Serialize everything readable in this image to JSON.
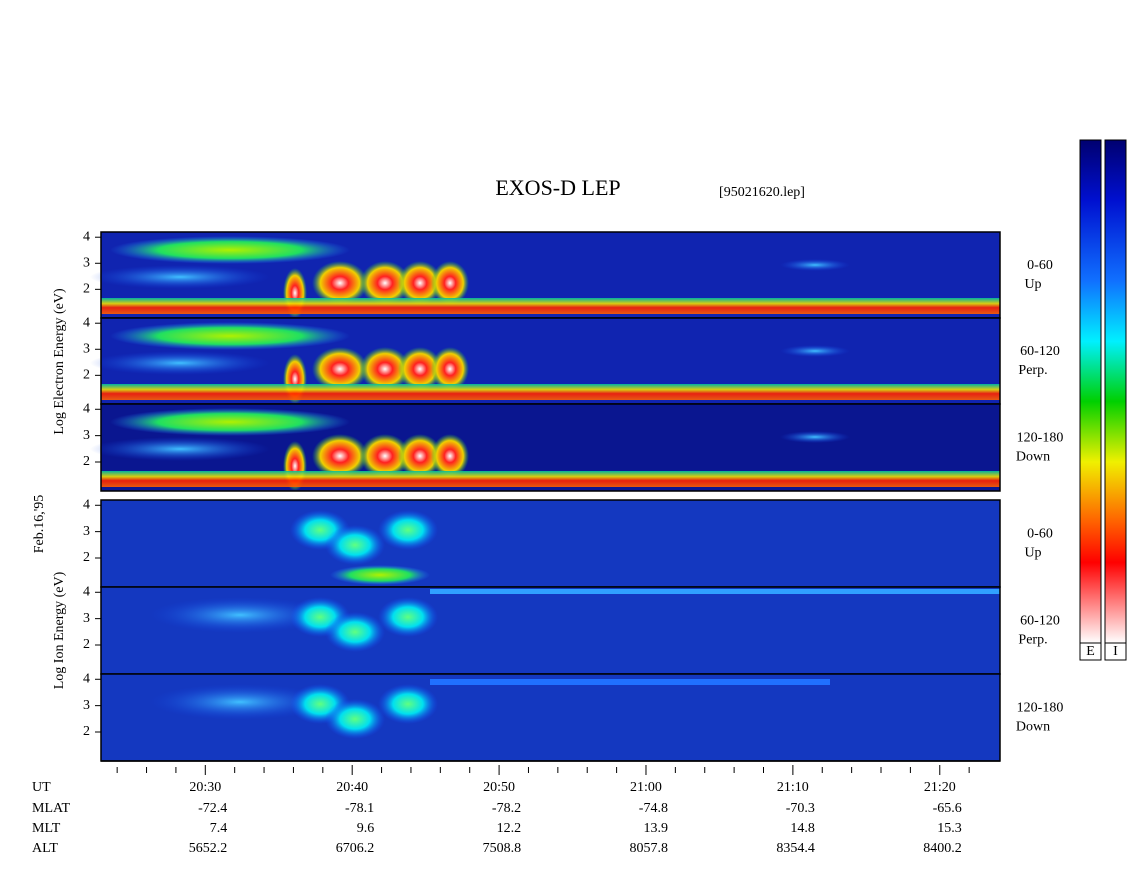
{
  "chart_data": {
    "type": "spectrogram",
    "title": "EXOS-D LEP",
    "subtitle": "[95021620.lep]",
    "date_label": "Feb.16,'95",
    "x_label": "UT",
    "xlim": [
      1222.9,
      1284.1
    ],
    "xticks": [
      {
        "value": 1230,
        "label": "20:30"
      },
      {
        "value": 1240,
        "label": "20:40"
      },
      {
        "value": 1250,
        "label": "20:50"
      },
      {
        "value": 1260,
        "label": "21:00"
      },
      {
        "value": 1270,
        "label": "21:10"
      },
      {
        "value": 1280,
        "label": "21:20"
      }
    ],
    "xminorticks": [
      1224,
      1226,
      1228,
      1232,
      1234,
      1236,
      1238,
      1242,
      1244,
      1246,
      1248,
      1252,
      1254,
      1256,
      1258,
      1262,
      1264,
      1266,
      1268,
      1272,
      1274,
      1276,
      1278,
      1282
    ],
    "ephemeris": [
      {
        "name": "MLAT",
        "values": [
          -72.4,
          -78.1,
          -78.2,
          -74.8,
          -70.3,
          -65.6
        ]
      },
      {
        "name": "MLT",
        "values": [
          7.4,
          9.6,
          12.2,
          13.9,
          14.8,
          15.3
        ]
      },
      {
        "name": "ALT",
        "values": [
          5652.2,
          6706.2,
          7508.8,
          8057.8,
          8354.4,
          8400.2
        ]
      }
    ],
    "groups": [
      {
        "ylabel": "Log Electron Energy (eV)",
        "ylim": [
          0.9,
          4.2
        ],
        "yticks": [
          2,
          3,
          4
        ],
        "panels": [
          {
            "angle": "0-60",
            "direction": "Up"
          },
          {
            "angle": "60-120",
            "direction": "Perp."
          },
          {
            "angle": "120-180",
            "direction": "Down"
          }
        ]
      },
      {
        "ylabel": "Log Ion Energy (eV)",
        "ylim": [
          0.9,
          4.2
        ],
        "yticks": [
          2,
          3,
          4
        ],
        "panels": [
          {
            "angle": "0-60",
            "direction": "Up"
          },
          {
            "angle": "60-120",
            "direction": "Perp."
          },
          {
            "angle": "120-180",
            "direction": "Down"
          }
        ]
      }
    ],
    "colorbars": [
      "E",
      "I"
    ]
  }
}
